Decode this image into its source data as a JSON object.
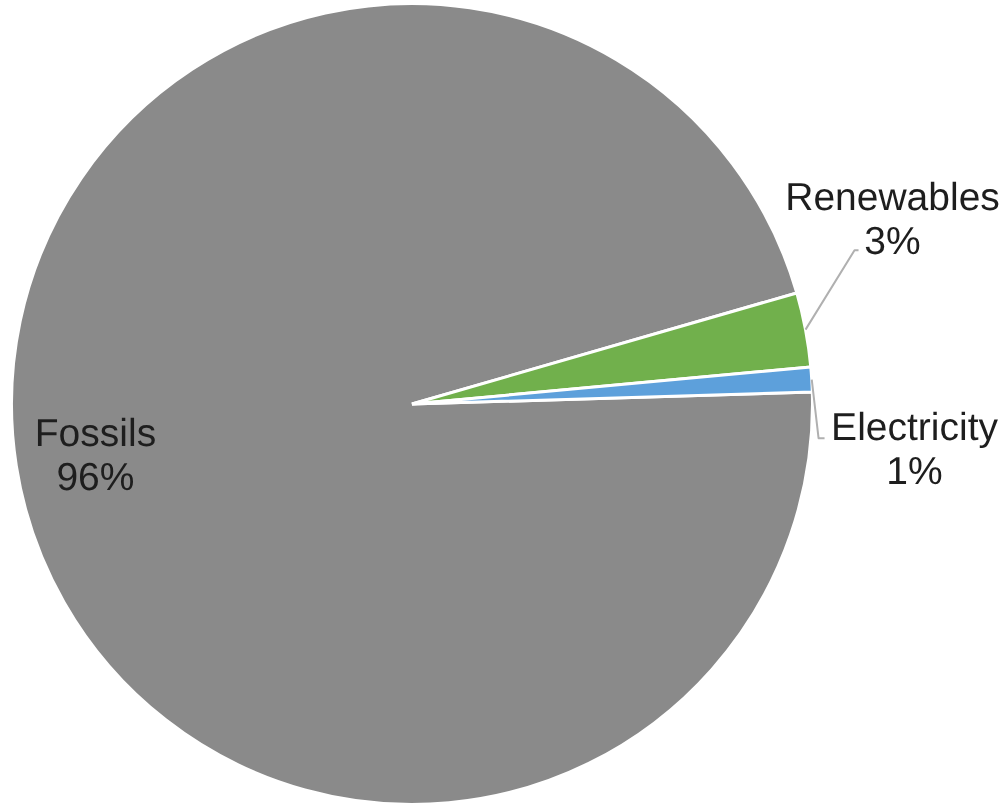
{
  "chart_data": {
    "type": "pie",
    "categories": [
      "Fossils",
      "Renewables",
      "Electricity"
    ],
    "values": [
      96,
      3,
      1
    ],
    "colors": [
      "#8a8a8a",
      "#71b04c",
      "#5da0db"
    ],
    "value_labels": [
      "96%",
      "3%",
      "1%"
    ],
    "legend": false
  }
}
